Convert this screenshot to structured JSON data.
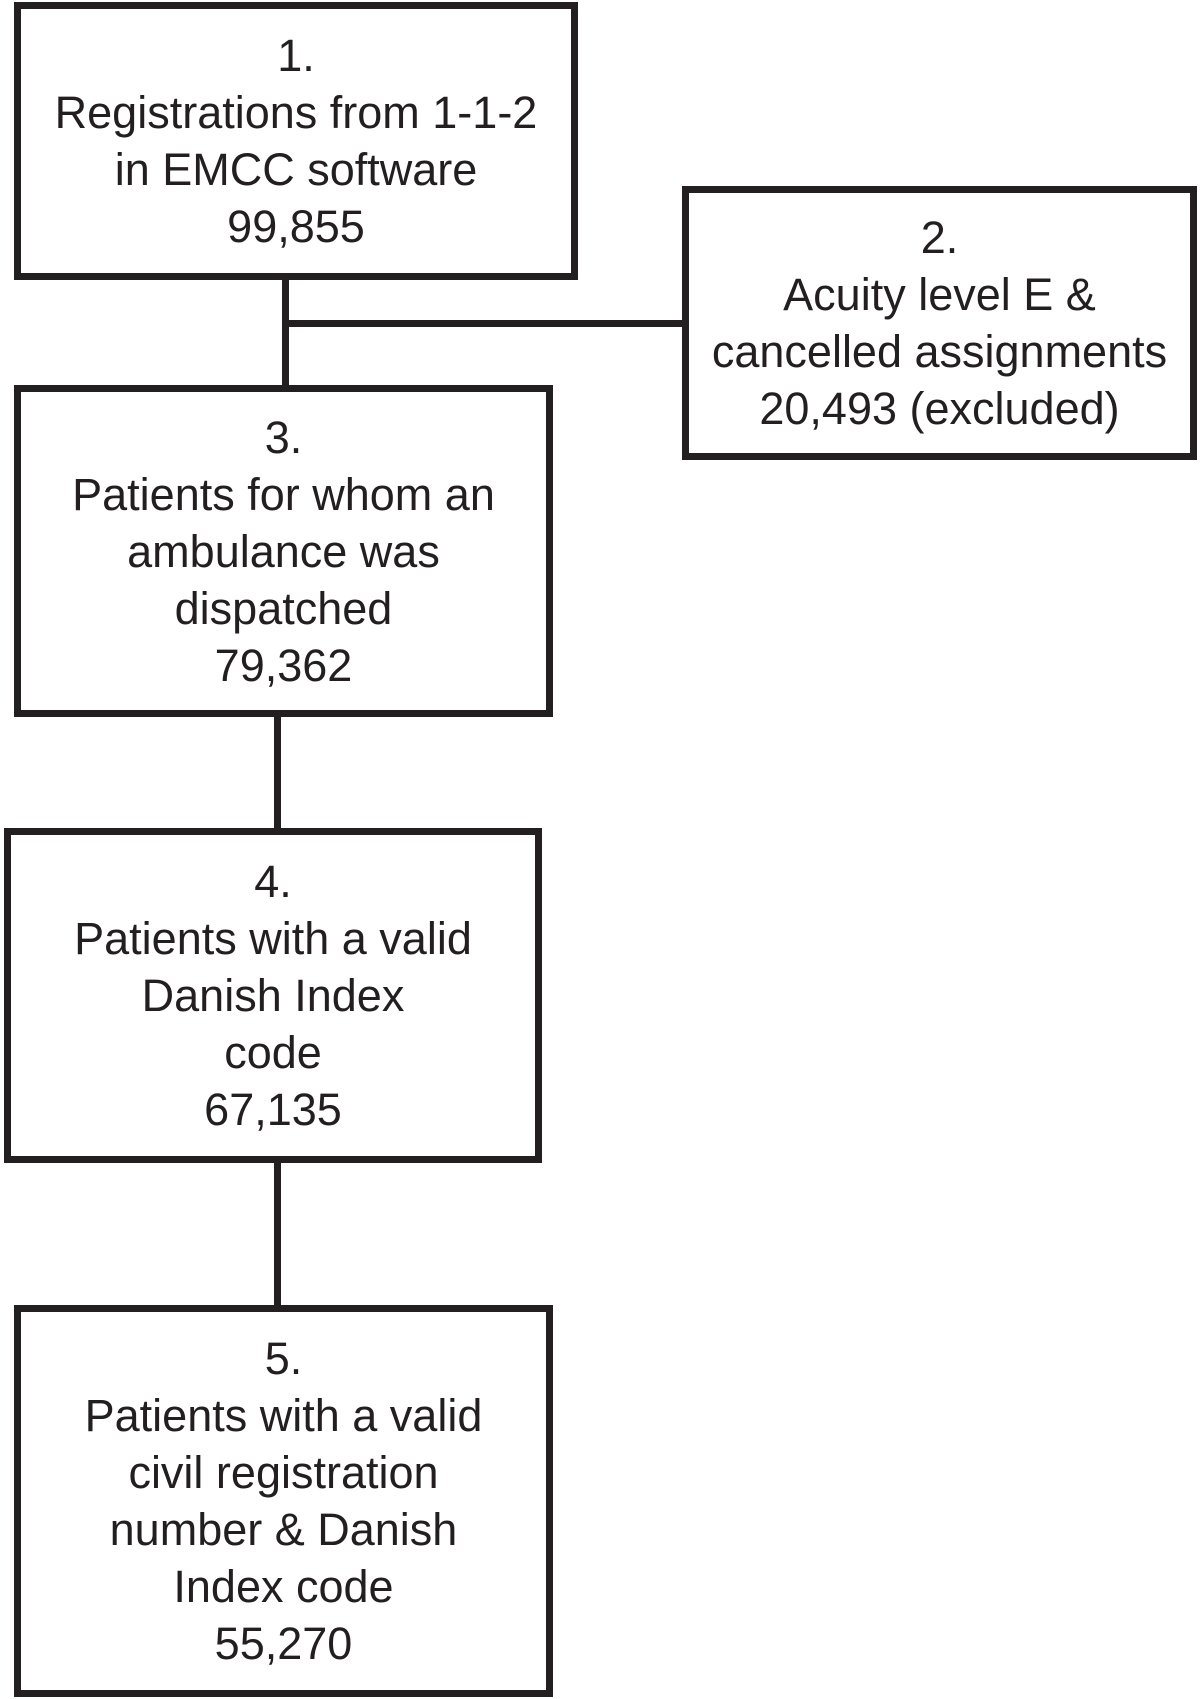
{
  "figure": {
    "kind": "patient-inclusion-flowchart",
    "colors": {
      "line": "#231f20",
      "text": "#231f20",
      "background": "#ffffff"
    },
    "boxes": [
      {
        "id": "1",
        "lines": [
          "1.",
          "Registrations from 1-1-2",
          "in EMCC software",
          "99,855"
        ]
      },
      {
        "id": "2",
        "lines": [
          "2.",
          "Acuity level E &",
          "cancelled assignments",
          "20,493 (excluded)"
        ]
      },
      {
        "id": "3",
        "lines": [
          "3.",
          "Patients for whom an",
          "ambulance was",
          "dispatched",
          "79,362"
        ]
      },
      {
        "id": "4",
        "lines": [
          "4.",
          "Patients with a valid",
          "Danish Index",
          "code",
          "67,135"
        ]
      },
      {
        "id": "5",
        "lines": [
          "5.",
          "Patients with a valid",
          "civil registration",
          "number & Danish",
          "Index code",
          "55,270"
        ]
      }
    ],
    "connections": [
      {
        "from": "1",
        "to": "3",
        "type": "vertical"
      },
      {
        "from": "1-3 trunk",
        "to": "2",
        "type": "horizontal-branch"
      },
      {
        "from": "3",
        "to": "4",
        "type": "vertical"
      },
      {
        "from": "4",
        "to": "5",
        "type": "vertical"
      }
    ]
  }
}
